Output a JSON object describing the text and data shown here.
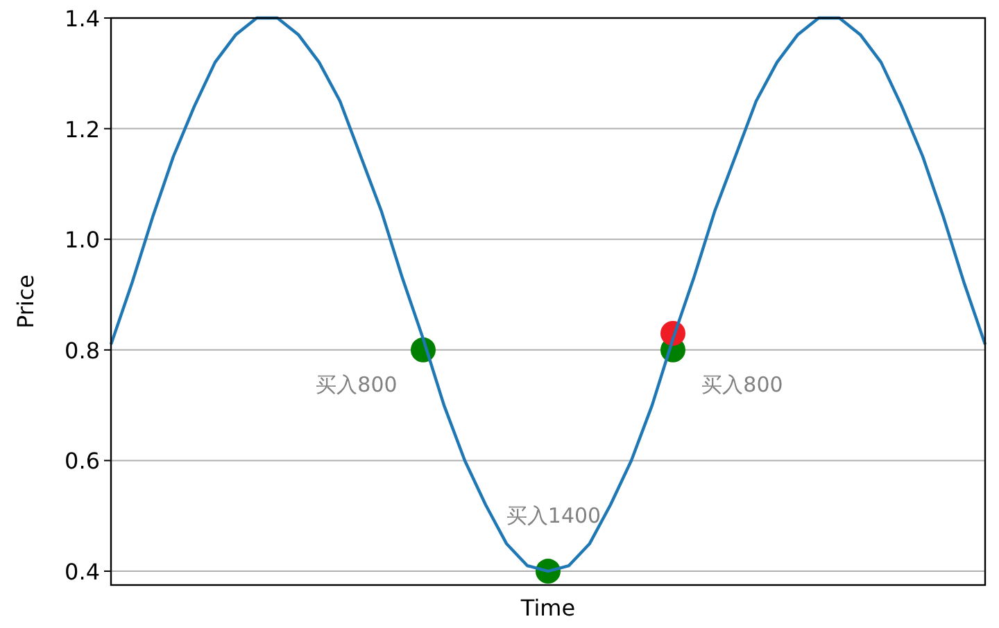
{
  "chart_data": {
    "type": "line",
    "xlabel": "Time",
    "ylabel": "Price",
    "ylim": [
      0.375,
      1.4
    ],
    "yticks": [
      0.4,
      0.6,
      0.8,
      {
        "value": 1,
        "label": "1.0"
      },
      1.2,
      1.4
    ],
    "tick_labels": "y",
    "grid": "y",
    "categories": [
      null,
      null,
      null,
      null,
      null,
      null,
      null,
      null,
      null,
      null,
      null,
      null,
      null,
      null,
      null,
      null,
      null,
      null,
      null,
      null,
      null,
      null,
      null,
      null,
      null,
      null,
      null,
      null,
      null,
      null,
      null,
      null,
      null,
      null,
      null,
      null,
      null,
      null,
      null,
      null,
      null,
      null,
      null
    ],
    "series": [
      {
        "type": "line",
        "color": "#1f77b4",
        "values": [
          0.81,
          0.92,
          1.04,
          1.15,
          1.24,
          1.32,
          1.37,
          1.4,
          1.4,
          1.37,
          1.32,
          1.25,
          1.15,
          1.05,
          0.93,
          0.82,
          0.7,
          0.6,
          0.52,
          0.45,
          0.41,
          0.4,
          0.41,
          0.45,
          0.52,
          0.6,
          0.7,
          0.82,
          0.93,
          1.05,
          1.15,
          1.25,
          1.32,
          1.37,
          1.4,
          1.4,
          1.37,
          1.32,
          1.24,
          1.15,
          1.04,
          0.92,
          0.81
        ]
      },
      {
        "type": "scatter",
        "color": "#008000",
        "marker": "circle",
        "values": [
          null,
          null,
          null,
          null,
          null,
          null,
          null,
          null,
          null,
          null,
          null,
          null,
          null,
          null,
          null,
          0.8,
          null,
          null,
          null,
          null,
          null,
          0.4,
          null,
          null,
          null,
          null,
          null,
          0.8,
          null,
          null,
          null,
          null,
          null,
          null,
          null,
          null,
          null,
          null,
          null,
          null,
          null,
          null,
          null
        ]
      },
      {
        "type": "scatter",
        "color": "#ee1c25",
        "marker": "circle",
        "values": [
          null,
          null,
          null,
          null,
          null,
          null,
          null,
          null,
          null,
          null,
          null,
          null,
          null,
          null,
          null,
          null,
          null,
          null,
          null,
          null,
          null,
          null,
          null,
          null,
          null,
          null,
          null,
          0.83,
          null,
          null,
          null,
          null,
          null,
          null,
          null,
          null,
          null,
          null,
          null,
          null,
          null,
          null,
          null
        ]
      }
    ],
    "annotations": [
      "买入800",
      "买入1400",
      "买入800"
    ]
  }
}
